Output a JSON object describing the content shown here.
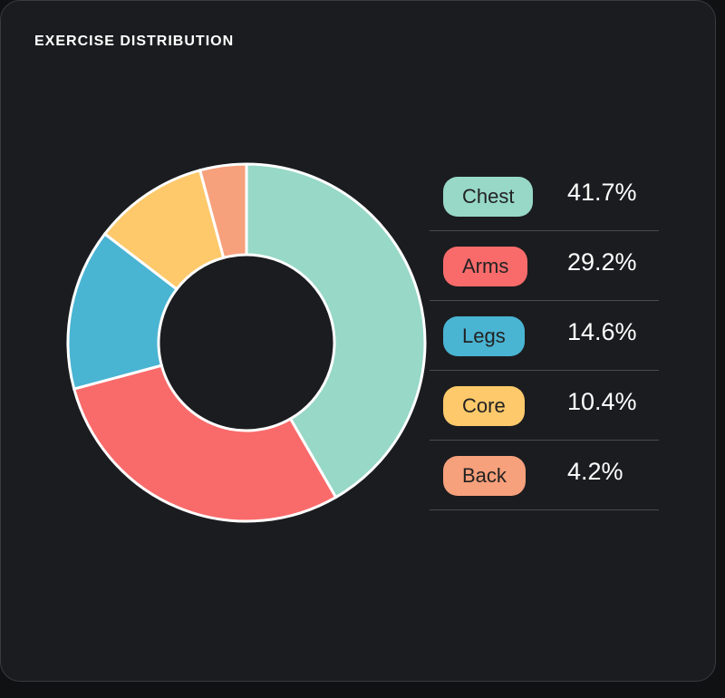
{
  "chart_data": {
    "type": "pie",
    "title": "EXERCISE DISTRIBUTION",
    "categories": [
      "Chest",
      "Arms",
      "Legs",
      "Core",
      "Back"
    ],
    "values": [
      41.7,
      29.2,
      14.6,
      10.4,
      4.2
    ],
    "value_labels": [
      "41.7%",
      "29.2%",
      "14.6%",
      "10.4%",
      "4.2%"
    ],
    "colors": [
      "#97d8c7",
      "#f96b6b",
      "#4ab4d3",
      "#fdc96b",
      "#f7a07c"
    ]
  }
}
